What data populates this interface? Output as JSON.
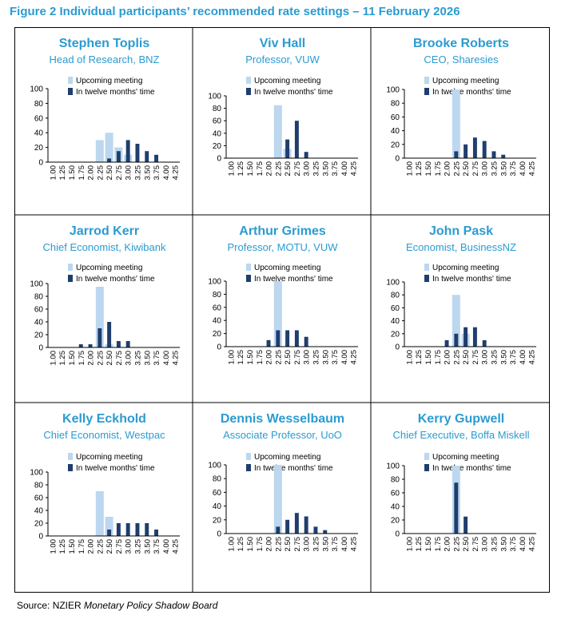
{
  "figure_title": "Figure 2 Individual participants’ recommended rate settings – 11 February 2026",
  "source": {
    "prefix": "Source: NZIER ",
    "publication": "Monetary Policy Shadow Board"
  },
  "colors": {
    "title": "#2b9bd1",
    "upcoming": "#bcd7ef",
    "twelve": "#1f3e6e",
    "axis": "#000000"
  },
  "chart_data": [
    {
      "type": "bar",
      "name": "Stephen Toplis",
      "role": "Head of Research, BNZ",
      "categories": [
        "1.00",
        "1.25",
        "1.50",
        "1.75",
        "2.00",
        "2.25",
        "2.50",
        "2.75",
        "3.00",
        "3.25",
        "3.50",
        "3.75",
        "4.00",
        "4.25"
      ],
      "series": [
        {
          "name": "Upcoming meeting",
          "values": [
            0,
            0,
            0,
            0,
            0,
            30,
            40,
            20,
            10,
            0,
            0,
            0,
            0,
            0
          ]
        },
        {
          "name": "In twelve months' time",
          "values": [
            0,
            0,
            0,
            0,
            0,
            0,
            5,
            15,
            30,
            25,
            15,
            10,
            0,
            0
          ]
        }
      ],
      "yticks": [
        0,
        20,
        40,
        60,
        80,
        100
      ],
      "ylim": [
        0,
        100
      ]
    },
    {
      "type": "bar",
      "name": "Viv Hall",
      "role": "Professor, VUW",
      "categories": [
        "1.00",
        "1.25",
        "1.50",
        "1.75",
        "2.00",
        "2.25",
        "2.50",
        "2.75",
        "3.00",
        "3.25",
        "3.50",
        "3.75",
        "4.00",
        "4.25"
      ],
      "series": [
        {
          "name": "Upcoming meeting",
          "values": [
            0,
            0,
            0,
            0,
            0,
            85,
            15,
            0,
            0,
            0,
            0,
            0,
            0,
            0
          ]
        },
        {
          "name": "In twelve months' time",
          "values": [
            0,
            0,
            0,
            0,
            0,
            0,
            30,
            60,
            10,
            0,
            0,
            0,
            0,
            0
          ]
        }
      ],
      "yticks": [
        0,
        20,
        40,
        60,
        80,
        100
      ],
      "ylim": [
        0,
        100
      ]
    },
    {
      "type": "bar",
      "name": "Brooke Roberts",
      "role": "CEO, Sharesies",
      "categories": [
        "1.00",
        "1.25",
        "1.50",
        "1.75",
        "2.00",
        "2.25",
        "2.50",
        "2.75",
        "3.00",
        "3.25",
        "3.50",
        "3.75",
        "4.00",
        "4.25"
      ],
      "series": [
        {
          "name": "Upcoming meeting",
          "values": [
            0,
            0,
            0,
            0,
            0,
            100,
            0,
            0,
            0,
            0,
            0,
            0,
            0,
            0
          ]
        },
        {
          "name": "In twelve months' time",
          "values": [
            0,
            0,
            0,
            0,
            0,
            10,
            20,
            30,
            25,
            10,
            5,
            0,
            0,
            0
          ]
        }
      ],
      "yticks": [
        0,
        20,
        40,
        60,
        80,
        100
      ],
      "ylim": [
        0,
        100
      ]
    },
    {
      "type": "bar",
      "name": "Jarrod Kerr",
      "role": "Chief Economist, Kiwibank",
      "categories": [
        "1.00",
        "1.25",
        "1.50",
        "1.75",
        "2.00",
        "2.25",
        "2.50",
        "2.75",
        "3.00",
        "3.25",
        "3.50",
        "3.75",
        "4.00",
        "4.25"
      ],
      "series": [
        {
          "name": "Upcoming meeting",
          "values": [
            0,
            0,
            0,
            0,
            0,
            95,
            5,
            0,
            0,
            0,
            0,
            0,
            0,
            0
          ]
        },
        {
          "name": "In twelve months' time",
          "values": [
            0,
            0,
            0,
            5,
            5,
            30,
            40,
            10,
            10,
            0,
            0,
            0,
            0,
            0
          ]
        }
      ],
      "yticks": [
        0,
        20,
        40,
        60,
        80,
        100
      ],
      "ylim": [
        0,
        100
      ]
    },
    {
      "type": "bar",
      "name": "Arthur Grimes",
      "role": "Professor, MOTU, VUW",
      "categories": [
        "1.00",
        "1.25",
        "1.50",
        "1.75",
        "2.00",
        "2.25",
        "2.50",
        "2.75",
        "3.00",
        "3.25",
        "3.50",
        "3.75",
        "4.00",
        "4.25"
      ],
      "series": [
        {
          "name": "Upcoming meeting",
          "values": [
            0,
            0,
            0,
            0,
            0,
            100,
            0,
            0,
            0,
            0,
            0,
            0,
            0,
            0
          ]
        },
        {
          "name": "In twelve months' time",
          "values": [
            0,
            0,
            0,
            0,
            10,
            25,
            25,
            25,
            15,
            0,
            0,
            0,
            0,
            0
          ]
        }
      ],
      "yticks": [
        0,
        20,
        40,
        60,
        80,
        100
      ],
      "ylim": [
        0,
        100
      ]
    },
    {
      "type": "bar",
      "name": "John Pask",
      "role": "Economist, BusinessNZ",
      "categories": [
        "1.00",
        "1.25",
        "1.50",
        "1.75",
        "2.00",
        "2.25",
        "2.50",
        "2.75",
        "3.00",
        "3.25",
        "3.50",
        "3.75",
        "4.00",
        "4.25"
      ],
      "series": [
        {
          "name": "Upcoming meeting",
          "values": [
            0,
            0,
            0,
            0,
            0,
            80,
            20,
            0,
            0,
            0,
            0,
            0,
            0,
            0
          ]
        },
        {
          "name": "In twelve months' time",
          "values": [
            0,
            0,
            0,
            0,
            10,
            20,
            30,
            30,
            10,
            0,
            0,
            0,
            0,
            0
          ]
        }
      ],
      "yticks": [
        0,
        20,
        40,
        60,
        80,
        100
      ],
      "ylim": [
        0,
        100
      ]
    },
    {
      "type": "bar",
      "name": "Kelly Eckhold",
      "role": "Chief Economist, Westpac",
      "categories": [
        "1.00",
        "1.25",
        "1.50",
        "1.75",
        "2.00",
        "2.25",
        "2.50",
        "2.75",
        "3.00",
        "3.25",
        "3.50",
        "3.75",
        "4.00",
        "4.25"
      ],
      "series": [
        {
          "name": "Upcoming meeting",
          "values": [
            0,
            0,
            0,
            0,
            0,
            70,
            30,
            0,
            0,
            0,
            0,
            0,
            0,
            0
          ]
        },
        {
          "name": "In twelve months' time",
          "values": [
            0,
            0,
            0,
            0,
            0,
            0,
            10,
            20,
            20,
            20,
            20,
            10,
            0,
            0
          ]
        }
      ],
      "yticks": [
        0,
        20,
        40,
        60,
        80,
        100
      ],
      "ylim": [
        0,
        100
      ]
    },
    {
      "type": "bar",
      "name": "Dennis Wesselbaum",
      "role": "Associate Professor, UoO",
      "categories": [
        "1.00",
        "1.25",
        "1.50",
        "1.75",
        "2.00",
        "2.25",
        "2.50",
        "2.75",
        "3.00",
        "3.25",
        "3.50",
        "3.75",
        "4.00",
        "4.25"
      ],
      "series": [
        {
          "name": "Upcoming meeting",
          "values": [
            0,
            0,
            0,
            0,
            0,
            100,
            0,
            0,
            0,
            0,
            0,
            0,
            0,
            0
          ]
        },
        {
          "name": "In twelve months' time",
          "values": [
            0,
            0,
            0,
            0,
            0,
            10,
            20,
            30,
            25,
            10,
            5,
            0,
            0,
            0
          ]
        }
      ],
      "yticks": [
        0,
        20,
        40,
        60,
        80,
        100
      ],
      "ylim": [
        0,
        100
      ]
    },
    {
      "type": "bar",
      "name": "Kerry Gupwell",
      "role": "Chief Executive, Boffa Miskell",
      "categories": [
        "1.00",
        "1.25",
        "1.50",
        "1.75",
        "2.00",
        "2.25",
        "2.50",
        "2.75",
        "3.00",
        "3.25",
        "3.50",
        "3.75",
        "4.00",
        "4.25"
      ],
      "series": [
        {
          "name": "Upcoming meeting",
          "values": [
            0,
            0,
            0,
            0,
            0,
            100,
            0,
            0,
            0,
            0,
            0,
            0,
            0,
            0
          ]
        },
        {
          "name": "In twelve months' time",
          "values": [
            0,
            0,
            0,
            0,
            0,
            75,
            25,
            0,
            0,
            0,
            0,
            0,
            0,
            0
          ]
        }
      ],
      "yticks": [
        0,
        20,
        40,
        60,
        80,
        100
      ],
      "ylim": [
        0,
        100
      ]
    }
  ]
}
